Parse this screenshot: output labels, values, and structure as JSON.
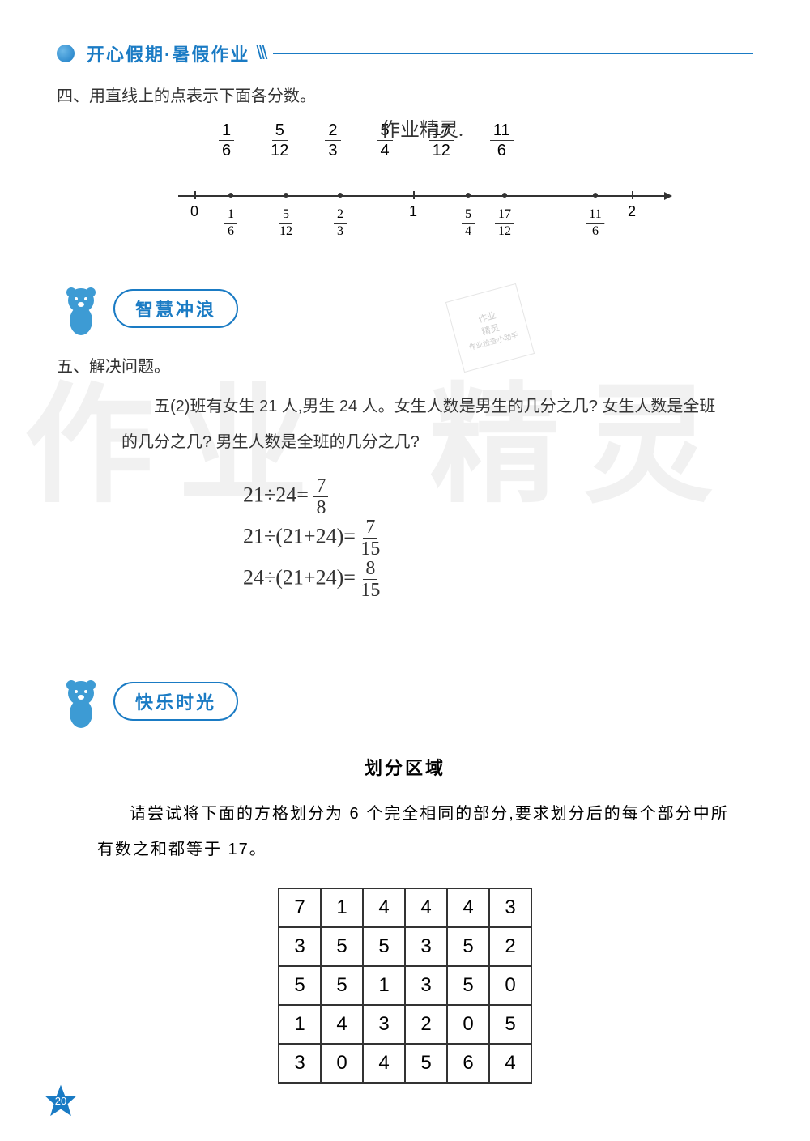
{
  "header": {
    "title": "开心假期·暑假作业",
    "slashes": "\\\\\\"
  },
  "topHandwriting": "作业精灵.",
  "question4": {
    "label": "四、用直线上的点表示下面各分数。",
    "fractions": [
      {
        "num": "1",
        "den": "6"
      },
      {
        "num": "5",
        "den": "12"
      },
      {
        "num": "2",
        "den": "3"
      },
      {
        "num": "5",
        "den": "4"
      },
      {
        "num": "17",
        "den": "12"
      },
      {
        "num": "11",
        "den": "6"
      }
    ],
    "numberLine": {
      "ticks": [
        {
          "pos": 20,
          "label": "0"
        },
        {
          "pos": 290,
          "label": "1"
        },
        {
          "pos": 560,
          "label": "2"
        }
      ],
      "points": [
        {
          "pos": 65,
          "num": "1",
          "den": "6"
        },
        {
          "pos": 133,
          "num": "5",
          "den": "12"
        },
        {
          "pos": 200,
          "num": "2",
          "den": "3"
        },
        {
          "pos": 358,
          "num": "5",
          "den": "4"
        },
        {
          "pos": 403,
          "num": "17",
          "den": "12"
        },
        {
          "pos": 515,
          "num": "11",
          "den": "6"
        }
      ]
    }
  },
  "section1": {
    "title": "智慧冲浪"
  },
  "stamp": {
    "line1": "作业",
    "line2": "精灵",
    "line3": "作业检查小助手"
  },
  "question5": {
    "label": "五、解决问题。",
    "text": "五(2)班有女生 21 人,男生 24 人。女生人数是男生的几分之几? 女生人数是全班的几分之几? 男生人数是全班的几分之几?",
    "work": [
      {
        "expr": "21÷24=",
        "num": "7",
        "den": "8"
      },
      {
        "expr": "21÷(21+24)=",
        "num": "7",
        "den": "15"
      },
      {
        "expr": "24÷(21+24)=",
        "num": "8",
        "den": "15"
      }
    ]
  },
  "watermark": {
    "left": "作业",
    "right": "精灵"
  },
  "section2": {
    "title": "快乐时光"
  },
  "puzzle": {
    "title": "划分区域",
    "text": "请尝试将下面的方格划分为 6 个完全相同的部分,要求划分后的每个部分中所有数之和都等于 17。",
    "grid": [
      [
        "7",
        "1",
        "4",
        "4",
        "4",
        "3"
      ],
      [
        "3",
        "5",
        "5",
        "3",
        "5",
        "2"
      ],
      [
        "5",
        "5",
        "1",
        "3",
        "5",
        "0"
      ],
      [
        "1",
        "4",
        "3",
        "2",
        "0",
        "5"
      ],
      [
        "3",
        "0",
        "4",
        "5",
        "6",
        "4"
      ]
    ]
  },
  "pageNumber": "20"
}
